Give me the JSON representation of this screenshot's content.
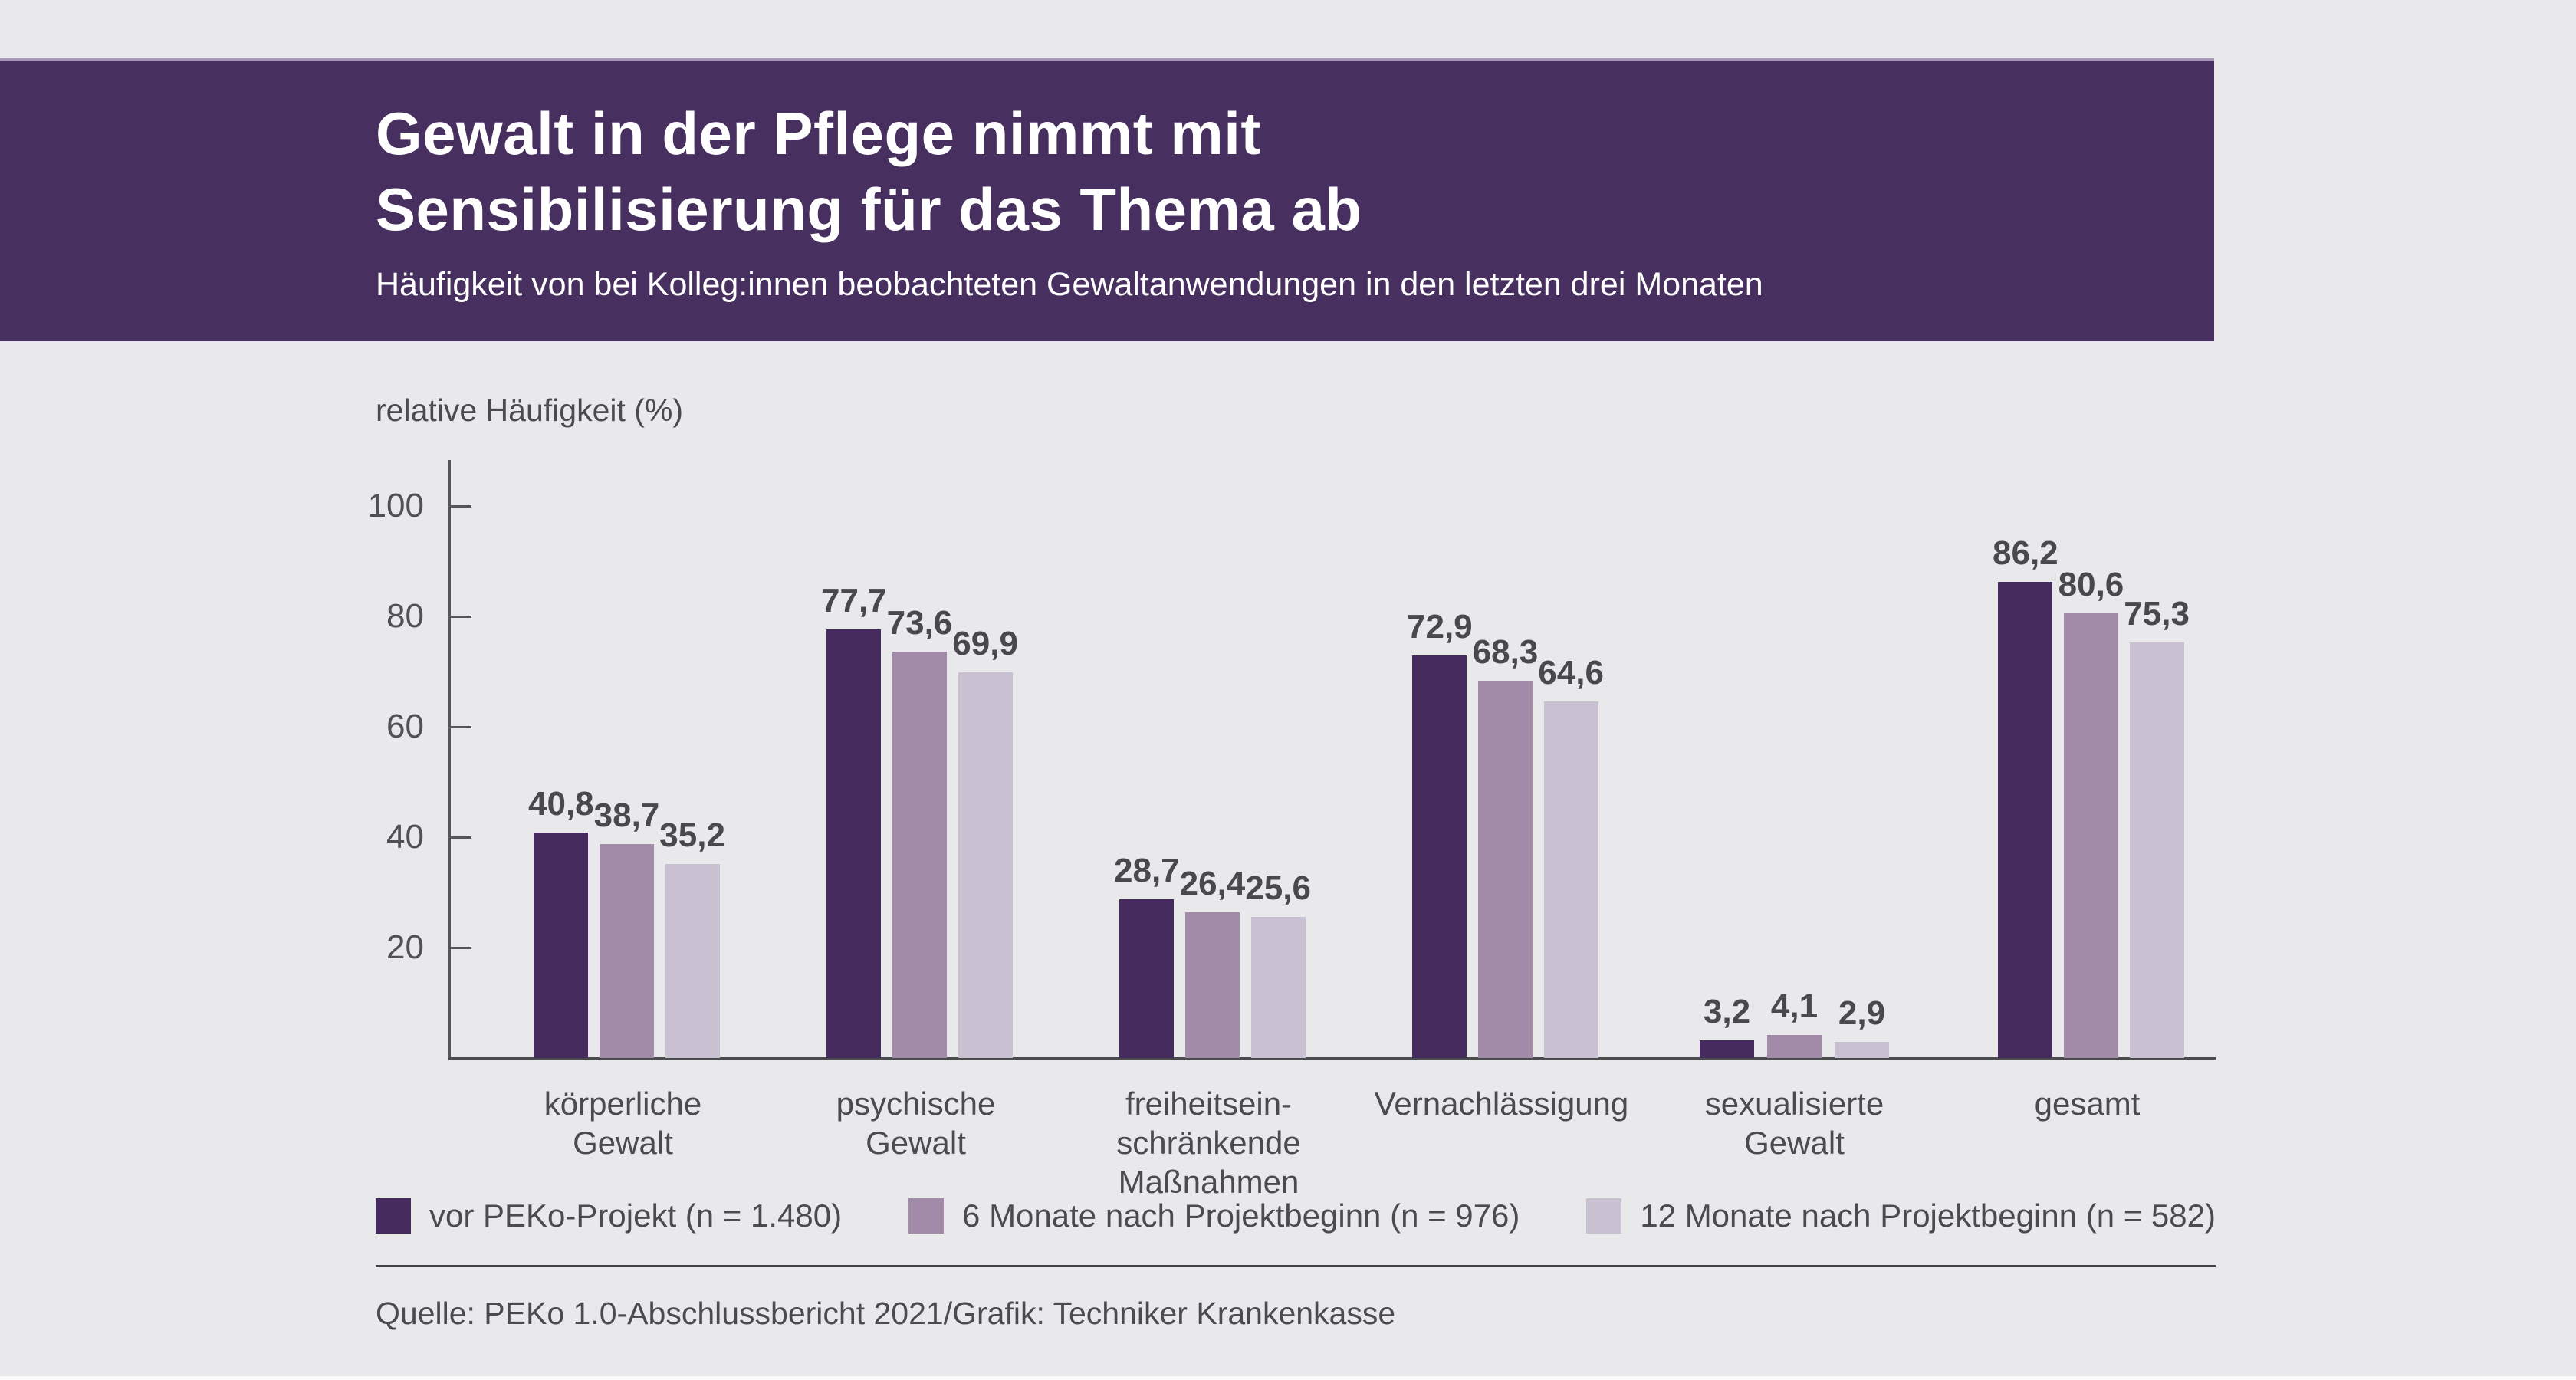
{
  "page": {
    "background_color": "#e9e9eb"
  },
  "header": {
    "background_color": "#47305f",
    "title_line1": "Gewalt in der Pflege nimmt mit",
    "title_line2": "Sensibilisierung für das Thema ab",
    "subtitle": "Häufigkeit von bei Kolleg:innen beobachteten Gewaltanwendungen in den letzten drei Monaten"
  },
  "chart_data": {
    "type": "bar",
    "axis_title": "relative Häufigkeit (%)",
    "ylabel": "relative Häufigkeit (%)",
    "xlabel": "",
    "ylim": [
      0,
      108
    ],
    "yticks": [
      20,
      40,
      60,
      80,
      100
    ],
    "grid": false,
    "legend_position": "bottom",
    "value_label_decimal_separator": ",",
    "categories": [
      [
        "körperliche",
        "Gewalt"
      ],
      [
        "psychische",
        "Gewalt"
      ],
      [
        "freiheitsein-",
        "schränkende",
        "Maßnahmen"
      ],
      [
        "Vernachlässigung"
      ],
      [
        "sexualisierte",
        "Gewalt"
      ],
      [
        "gesamt"
      ]
    ],
    "series": [
      {
        "name": "vor PEKo-Projekt (n = 1.480)",
        "color": "#452b5e",
        "values": [
          40.8,
          77.7,
          28.7,
          72.9,
          3.2,
          86.2
        ],
        "labels": [
          "40,8",
          "77,7",
          "28,7",
          "72,9",
          "3,2",
          "86,2"
        ]
      },
      {
        "name": "6 Monate nach Projektbeginn (n = 976)",
        "color": "#a18ba9",
        "values": [
          38.7,
          73.6,
          26.4,
          68.3,
          4.1,
          80.6
        ],
        "labels": [
          "38,7",
          "73,6",
          "26,4",
          "68,3",
          "4,1",
          "80,6"
        ]
      },
      {
        "name": "12 Monate nach Projektbeginn (n = 582)",
        "color": "#c9c0d2",
        "values": [
          35.2,
          69.9,
          25.6,
          64.6,
          2.9,
          75.3
        ],
        "labels": [
          "35,2",
          "69,9",
          "25,6",
          "64,6",
          "2,9",
          "75,3"
        ]
      }
    ]
  },
  "footer": {
    "source": "Quelle: PEKo 1.0-Abschlussbericht 2021/Grafik: Techniker Krankenkasse"
  }
}
